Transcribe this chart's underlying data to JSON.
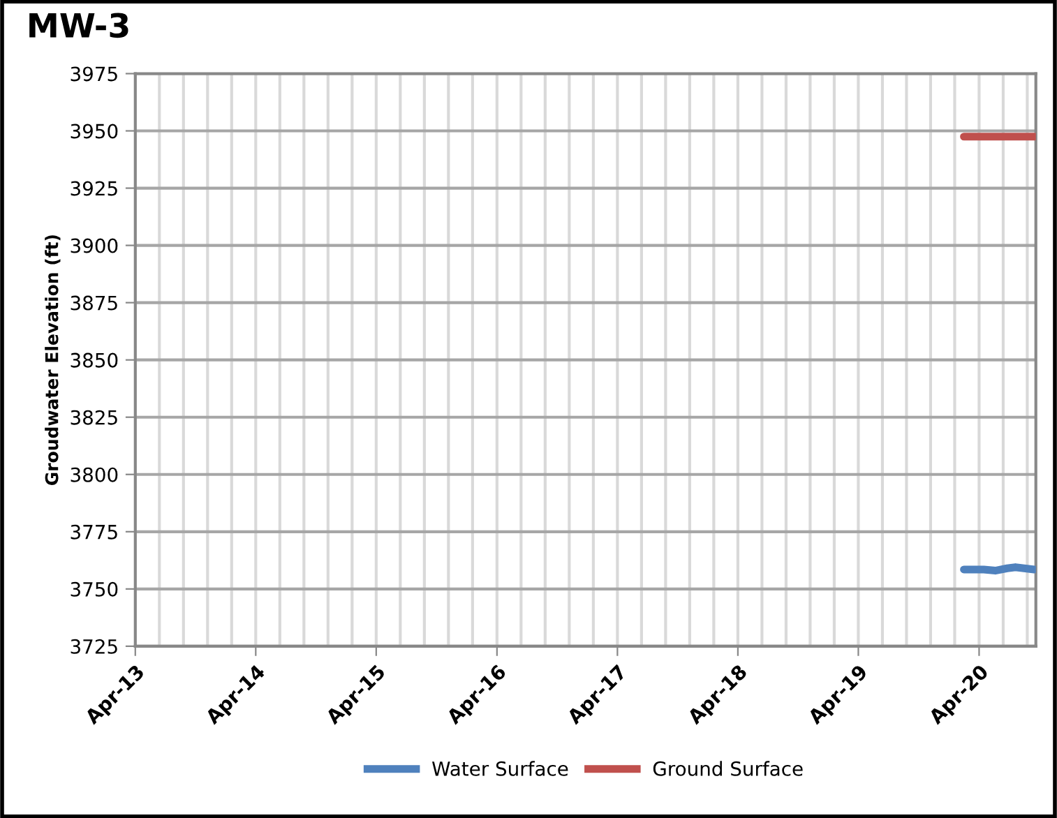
{
  "chart_data": {
    "type": "line",
    "title": "MW-3",
    "ylabel": "Groudwater Elevation (ft)",
    "series": [
      {
        "name": "Water Surface",
        "color": "#4f81bd",
        "x": [
          "2020-02-15",
          "2020-04-15",
          "2020-05-20",
          "2020-06-25",
          "2020-07-20",
          "2020-09-15"
        ],
        "values": [
          3758.5,
          3758.5,
          3758,
          3759,
          3759.5,
          3758.5
        ]
      },
      {
        "name": "Ground Surface",
        "color": "#c0504d",
        "x": [
          "2020-02-15",
          "2020-09-15"
        ],
        "values": [
          3947.5,
          3947.5
        ]
      }
    ],
    "xlim": [
      "2013-04-01",
      "2020-09-20"
    ],
    "xticks": [
      {
        "value": "2013-04-01",
        "label": "Apr-13"
      },
      {
        "value": "2013-06-13",
        "label": null
      },
      {
        "value": "2013-08-25",
        "label": null
      },
      {
        "value": "2013-11-06",
        "label": null
      },
      {
        "value": "2014-01-18",
        "label": null
      },
      {
        "value": "2014-04-01",
        "label": "Apr-14"
      },
      {
        "value": "2014-06-13",
        "label": null
      },
      {
        "value": "2014-08-25",
        "label": null
      },
      {
        "value": "2014-11-06",
        "label": null
      },
      {
        "value": "2015-01-18",
        "label": null
      },
      {
        "value": "2015-04-01",
        "label": "Apr-15"
      },
      {
        "value": "2015-06-13",
        "label": null
      },
      {
        "value": "2015-08-25",
        "label": null
      },
      {
        "value": "2015-11-06",
        "label": null
      },
      {
        "value": "2016-01-18",
        "label": null
      },
      {
        "value": "2016-04-01",
        "label": "Apr-16"
      },
      {
        "value": "2016-06-13",
        "label": null
      },
      {
        "value": "2016-08-25",
        "label": null
      },
      {
        "value": "2016-11-06",
        "label": null
      },
      {
        "value": "2017-01-18",
        "label": null
      },
      {
        "value": "2017-04-01",
        "label": "Apr-17"
      },
      {
        "value": "2017-06-13",
        "label": null
      },
      {
        "value": "2017-08-25",
        "label": null
      },
      {
        "value": "2017-11-06",
        "label": null
      },
      {
        "value": "2018-01-18",
        "label": null
      },
      {
        "value": "2018-04-01",
        "label": "Apr-18"
      },
      {
        "value": "2018-06-13",
        "label": null
      },
      {
        "value": "2018-08-25",
        "label": null
      },
      {
        "value": "2018-11-06",
        "label": null
      },
      {
        "value": "2019-01-18",
        "label": null
      },
      {
        "value": "2019-04-01",
        "label": "Apr-19"
      },
      {
        "value": "2019-06-13",
        "label": null
      },
      {
        "value": "2019-08-25",
        "label": null
      },
      {
        "value": "2019-11-06",
        "label": null
      },
      {
        "value": "2020-01-18",
        "label": null
      },
      {
        "value": "2020-04-01",
        "label": "Apr-20"
      },
      {
        "value": "2020-06-13",
        "label": null
      },
      {
        "value": "2020-08-25",
        "label": null
      }
    ],
    "ylim": [
      3725,
      3975
    ],
    "yticks": [
      3725,
      3750,
      3775,
      3800,
      3825,
      3850,
      3875,
      3900,
      3925,
      3950,
      3975
    ],
    "grid": true,
    "legend": "bottom",
    "marker": "none",
    "line_style": "solid"
  }
}
